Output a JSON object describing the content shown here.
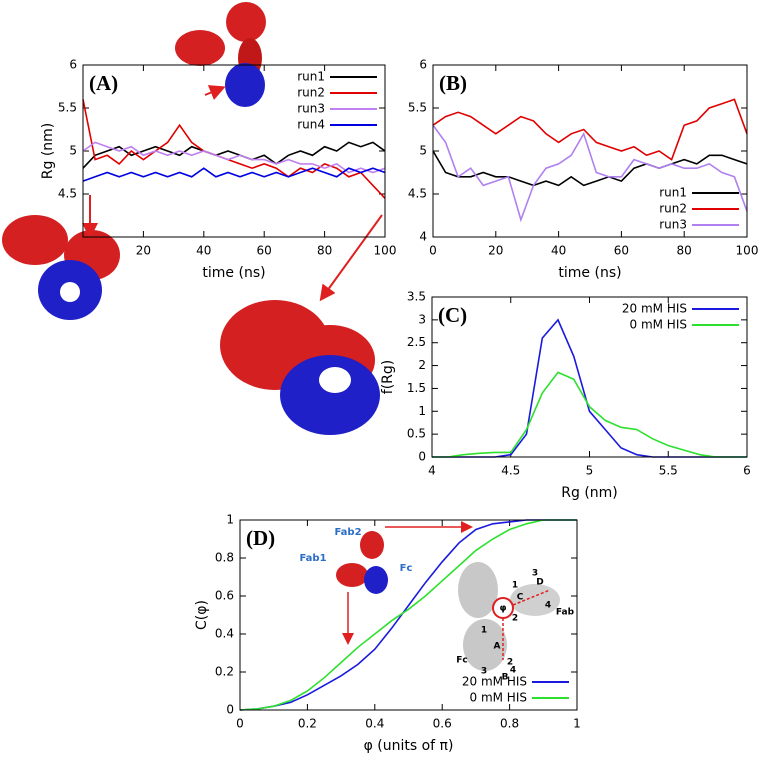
{
  "chart_data": [
    {
      "type": "line",
      "panel_label": "(A)",
      "x_label": "time (ns)",
      "y_label": "Rg (nm)",
      "xlim": [
        0,
        100
      ],
      "xticks": [
        20,
        40,
        60,
        80,
        100
      ],
      "ylim": [
        4,
        6
      ],
      "yticks": [
        4.5,
        5,
        5.5,
        6
      ],
      "legend": "top-right",
      "x": [
        0,
        4,
        8,
        12,
        16,
        20,
        24,
        28,
        32,
        36,
        40,
        44,
        48,
        52,
        56,
        60,
        64,
        68,
        72,
        76,
        80,
        84,
        88,
        92,
        96,
        100
      ],
      "series": [
        {
          "name": "run1",
          "color": "#000000",
          "values": [
            4.8,
            4.95,
            5.0,
            5.05,
            4.95,
            5.0,
            5.05,
            5.0,
            4.95,
            5.05,
            5.0,
            4.95,
            5.0,
            4.95,
            4.9,
            4.95,
            4.85,
            4.95,
            5.0,
            4.95,
            5.05,
            5.0,
            5.1,
            5.05,
            5.1,
            5.0
          ]
        },
        {
          "name": "run2",
          "color": "#e00000",
          "values": [
            5.6,
            4.9,
            4.95,
            4.85,
            5.0,
            4.9,
            5.0,
            5.1,
            5.3,
            5.1,
            5.0,
            4.95,
            4.9,
            4.85,
            4.8,
            4.85,
            4.8,
            4.7,
            4.8,
            4.75,
            4.85,
            4.8,
            4.7,
            4.75,
            4.6,
            4.45
          ]
        },
        {
          "name": "run3",
          "color": "#c080f0",
          "values": [
            5.0,
            5.1,
            5.05,
            5.0,
            5.05,
            4.95,
            5.0,
            4.95,
            5.0,
            4.95,
            5.0,
            4.95,
            4.9,
            4.95,
            4.9,
            4.9,
            4.85,
            4.9,
            4.85,
            4.85,
            4.8,
            4.85,
            4.75,
            4.8,
            4.75,
            4.8
          ]
        },
        {
          "name": "run4",
          "color": "#0000e0",
          "values": [
            4.65,
            4.7,
            4.75,
            4.7,
            4.75,
            4.7,
            4.75,
            4.7,
            4.75,
            4.7,
            4.8,
            4.7,
            4.75,
            4.7,
            4.75,
            4.7,
            4.75,
            4.7,
            4.75,
            4.8,
            4.75,
            4.7,
            4.8,
            4.75,
            4.8,
            4.75
          ]
        }
      ]
    },
    {
      "type": "line",
      "panel_label": "(B)",
      "x_label": "time (ns)",
      "xlim": [
        0,
        100
      ],
      "xticks": [
        0,
        20,
        40,
        60,
        80,
        100
      ],
      "ylim": [
        4,
        6
      ],
      "yticks": [
        4,
        4.5,
        5,
        5.5,
        6
      ],
      "legend": "bottom-right",
      "x": [
        0,
        4,
        8,
        12,
        16,
        20,
        24,
        28,
        32,
        36,
        40,
        44,
        48,
        52,
        56,
        60,
        64,
        68,
        72,
        76,
        80,
        84,
        88,
        92,
        96,
        100
      ],
      "series": [
        {
          "name": "run1",
          "color": "#000000",
          "values": [
            5.0,
            4.75,
            4.7,
            4.7,
            4.75,
            4.7,
            4.7,
            4.65,
            4.6,
            4.65,
            4.6,
            4.7,
            4.6,
            4.65,
            4.7,
            4.65,
            4.8,
            4.85,
            4.8,
            4.85,
            4.9,
            4.85,
            4.95,
            4.95,
            4.9,
            4.85
          ]
        },
        {
          "name": "run2",
          "color": "#e00000",
          "values": [
            5.3,
            5.4,
            5.45,
            5.4,
            5.3,
            5.2,
            5.3,
            5.4,
            5.35,
            5.2,
            5.1,
            5.2,
            5.25,
            5.1,
            5.05,
            5.0,
            5.05,
            4.95,
            5.0,
            4.9,
            5.3,
            5.35,
            5.5,
            5.55,
            5.6,
            5.2
          ]
        },
        {
          "name": "run3",
          "color": "#b080f0",
          "values": [
            5.3,
            5.1,
            4.7,
            4.8,
            4.6,
            4.65,
            4.7,
            4.2,
            4.6,
            4.8,
            4.85,
            4.95,
            5.2,
            4.75,
            4.7,
            4.7,
            4.9,
            4.85,
            4.8,
            4.85,
            4.8,
            4.8,
            4.85,
            4.75,
            4.7,
            4.3
          ]
        }
      ]
    },
    {
      "type": "line",
      "panel_label": "(C)",
      "x_label": "Rg (nm)",
      "y_label": "f(Rg)",
      "xlim": [
        4,
        6
      ],
      "xticks": [
        4,
        4.5,
        5,
        5.5,
        6
      ],
      "ylim": [
        0,
        3.5
      ],
      "yticks": [
        0,
        0.5,
        1,
        1.5,
        2,
        2.5,
        3,
        3.5
      ],
      "legend": "top-right",
      "x": [
        4,
        4.1,
        4.2,
        4.3,
        4.4,
        4.5,
        4.6,
        4.7,
        4.8,
        4.9,
        5,
        5.1,
        5.2,
        5.3,
        5.4,
        5.5,
        5.6,
        5.7,
        5.8,
        5.9,
        6
      ],
      "series": [
        {
          "name": "20 mM HIS",
          "color": "#1a1adf",
          "values": [
            0,
            0,
            0,
            0,
            0,
            0.05,
            0.5,
            2.6,
            3.0,
            2.2,
            1.0,
            0.6,
            0.2,
            0.05,
            0,
            0,
            0,
            0,
            0,
            0,
            0
          ]
        },
        {
          "name": "0 mM HIS",
          "color": "#2ee02e",
          "values": [
            0,
            0,
            0.05,
            0.08,
            0.1,
            0.1,
            0.6,
            1.4,
            1.85,
            1.7,
            1.1,
            0.8,
            0.65,
            0.6,
            0.4,
            0.25,
            0.15,
            0.05,
            0,
            0,
            0
          ]
        }
      ]
    },
    {
      "type": "line",
      "panel_label": "(D)",
      "x_label": "φ (units of π)",
      "y_label": "C(φ)",
      "xlim": [
        0,
        1
      ],
      "xticks": [
        0,
        0.2,
        0.4,
        0.6,
        0.8,
        1
      ],
      "ylim": [
        0,
        1
      ],
      "yticks": [
        0,
        0.2,
        0.4,
        0.6,
        0.8,
        1
      ],
      "legend": "bottom-right",
      "annotations": [
        "Fab2",
        "Fab1",
        "Fc"
      ],
      "inset_labels": [
        "Fab",
        "Fc",
        "φ",
        "A",
        "B",
        "C",
        "D",
        "1",
        "2",
        "3",
        "4",
        "1",
        "2",
        "3",
        "4"
      ],
      "x": [
        0,
        0.05,
        0.1,
        0.15,
        0.2,
        0.25,
        0.3,
        0.35,
        0.4,
        0.45,
        0.5,
        0.55,
        0.6,
        0.65,
        0.7,
        0.75,
        0.8,
        0.85,
        0.9,
        0.95,
        1
      ],
      "series": [
        {
          "name": "20 mM HIS",
          "color": "#1a1adf",
          "values": [
            0,
            0.005,
            0.02,
            0.04,
            0.08,
            0.13,
            0.18,
            0.24,
            0.32,
            0.43,
            0.55,
            0.67,
            0.78,
            0.88,
            0.95,
            0.98,
            0.99,
            1,
            1,
            1,
            1
          ]
        },
        {
          "name": "0 mM HIS",
          "color": "#2ee02e",
          "values": [
            0,
            0.005,
            0.02,
            0.05,
            0.1,
            0.17,
            0.25,
            0.33,
            0.4,
            0.47,
            0.53,
            0.6,
            0.68,
            0.76,
            0.84,
            0.9,
            0.95,
            0.98,
            1,
            1,
            1
          ]
        }
      ]
    }
  ]
}
